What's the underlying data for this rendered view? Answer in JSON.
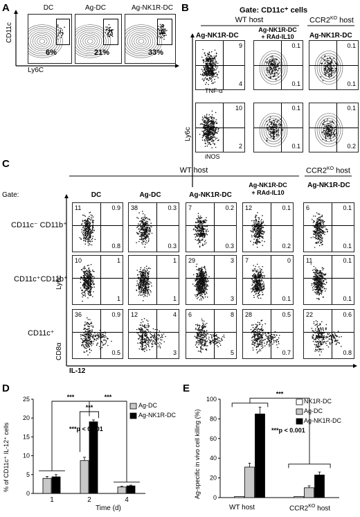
{
  "panel_letters": {
    "a": "A",
    "b": "B",
    "c": "C",
    "d": "D",
    "e": "E"
  },
  "panelA": {
    "titles": [
      "DC",
      "Ag-DC",
      "Ag-NK1R-DC"
    ],
    "percents": [
      "6%",
      "21%",
      "33%"
    ],
    "y_axis": "CD11c",
    "x_axis": "Ly6C"
  },
  "panelB": {
    "gate_title": "Gate: CD11c⁺ cells",
    "wt_host": "WT host",
    "ccr2_host": "CCR2KO host",
    "ccr2_host_prefix": "CCR2",
    "ccr2_host_sup": "KO",
    "ccr2_host_suffix": " host",
    "col_titles": [
      "Ag-NK1R-DC",
      "Ag-NK1R-DC\n+ RAd-IL10",
      "Ag-NK1R-DC"
    ],
    "col1_line1": "Ag-NK1R-DC",
    "col1_line2": "+ RAd-IL10",
    "row_x_labels": [
      "TNF-α",
      "iNOS"
    ],
    "y_axis": "Ly6c",
    "quadrant_values": [
      [
        [
          "9",
          "4"
        ],
        [
          "0.1",
          "0.1"
        ],
        [
          "0.1",
          "0.1"
        ]
      ],
      [
        [
          "10",
          "2"
        ],
        [
          "0.1",
          "0.1"
        ],
        [
          "0.1",
          "0.2"
        ]
      ]
    ]
  },
  "panelC": {
    "wt_host": "WT host",
    "ccr2_host_prefix": "CCR2",
    "ccr2_host_sup": "KO",
    "ccr2_host_suffix": " host",
    "gate_label": "Gate:",
    "col_titles": [
      "DC",
      "Ag-DC",
      "Ag-NK1R-DC",
      "Ag-NK1R-DC\n+ RAd-IL10",
      "Ag-NK1R-DC"
    ],
    "col3_line1": "Ag-NK1R-DC",
    "col3_line2": "+ RAd-IL10",
    "row_labels": [
      "CD11c⁻ CD11b⁺",
      "CD11c⁺CD11b⁺",
      "CD11c⁺"
    ],
    "row1_label": "CD11c⁻ CD11b⁺",
    "row2_label": "CD11c⁺CD11b⁺",
    "row3_label": "CD11c⁺",
    "y_axis_ly6c": "Ly6c",
    "y_axis_cd8": "CD8α",
    "x_axis": "IL-12",
    "quadrant_values": [
      [
        [
          "11",
          "0.9",
          "0.8"
        ],
        [
          "38",
          "0.3",
          "0.3"
        ],
        [
          "7",
          "0.2",
          "0.3"
        ],
        [
          "12",
          "0.1",
          "0.2"
        ],
        [
          "6",
          "0.1",
          "0.1"
        ]
      ],
      [
        [
          "10",
          "1",
          "1"
        ],
        [
          "",
          "1",
          "1"
        ],
        [
          "29",
          "3",
          "3"
        ],
        [
          "7",
          "0",
          "0.1"
        ],
        [
          "11",
          "0.1",
          "0.1"
        ]
      ],
      [
        [
          "36",
          "0.9",
          "0.5"
        ],
        [
          "12",
          "4",
          "3"
        ],
        [
          "6",
          "8",
          "5"
        ],
        [
          "28",
          "0.5",
          "0.7"
        ],
        [
          "22",
          "0.6",
          "0.8"
        ]
      ]
    ]
  },
  "chart_data": [
    {
      "type": "bar",
      "panel": "D",
      "categories": [
        "1",
        "2",
        "4"
      ],
      "series": [
        {
          "name": "Ag-DC",
          "values": [
            4.0,
            8.7,
            1.7
          ],
          "errors": [
            0.5,
            0.9,
            0.2
          ],
          "color": "#c8c8c8"
        },
        {
          "name": "Ag-NK1R-DC",
          "values": [
            4.4,
            19.0,
            2.0
          ],
          "errors": [
            0.6,
            0.5,
            0.2
          ],
          "color": "#000000"
        }
      ],
      "xlabel": "Time (d)",
      "ylabel": "% of CD11c⁺ IL-12⁺ cells",
      "ylim": [
        0,
        25
      ],
      "yticks": [
        "0",
        "5",
        "10",
        "15",
        "20",
        "25"
      ],
      "significance": [
        "***",
        "***",
        "***"
      ],
      "annotation": "***p < 0.001",
      "legend": "top-right"
    },
    {
      "type": "bar",
      "panel": "E",
      "categories": [
        "WT host",
        "CCR2KO host"
      ],
      "series": [
        {
          "name": "NK1R-DC",
          "values": [
            1,
            1
          ],
          "errors": [
            0,
            0
          ],
          "color": "#ffffff"
        },
        {
          "name": "Ag-DC",
          "values": [
            31,
            10
          ],
          "errors": [
            4,
            2
          ],
          "color": "#c8c8c8"
        },
        {
          "name": "Ag-NK1R-DC",
          "values": [
            85,
            23
          ],
          "errors": [
            7,
            3
          ],
          "color": "#000000"
        }
      ],
      "xlabel": "",
      "ylabel": "Ag-specific in vivo cell killing (%)",
      "ylim": [
        0,
        100
      ],
      "yticks": [
        "0",
        "20",
        "40",
        "60",
        "80",
        "100"
      ],
      "significance": [
        "***"
      ],
      "annotation": "***p < 0.001",
      "legend": "top-right"
    }
  ],
  "panelD_text": {
    "ylabel": "% of CD11c⁺ IL-12⁺ cells",
    "xlabel": "Time (d)",
    "sig": "***",
    "annotation": "***p < 0.001",
    "legend": [
      "Ag-DC",
      "Ag-NK1R-DC"
    ],
    "yticks": [
      "0",
      "5",
      "10",
      "15",
      "20",
      "25"
    ],
    "categories": [
      "1",
      "2",
      "4"
    ]
  },
  "panelE_text": {
    "ylabel_line1": "Ag-specific in vivo cell killing (%)",
    "sig": "***",
    "annotation": "***p < 0.001",
    "legend": [
      "NK1R-DC",
      "Ag-DC",
      "Ag-NK1R-DC"
    ],
    "yticks": [
      "0",
      "20",
      "40",
      "60",
      "80",
      "100"
    ],
    "cat1": "WT host",
    "cat2_prefix": "CCR2",
    "cat2_sup": "KO",
    "cat2_suffix": " host"
  }
}
